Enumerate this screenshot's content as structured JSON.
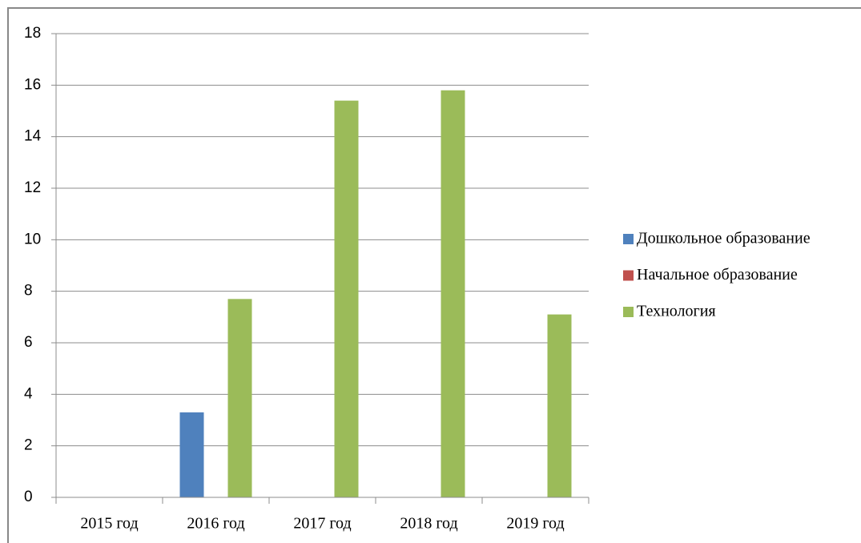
{
  "chart_data": {
    "type": "bar",
    "categories": [
      "2015 год",
      "2016 год",
      "2017 год",
      "2018 год",
      "2019 год"
    ],
    "series": [
      {
        "name": "Дошкольное образование",
        "color": "#4f81bd",
        "values": [
          0,
          3.3,
          0,
          0,
          0
        ]
      },
      {
        "name": "Начальное образование",
        "color": "#c0504d",
        "values": [
          0,
          0,
          0,
          0,
          0
        ]
      },
      {
        "name": "Технология",
        "color": "#9bbb59",
        "values": [
          0,
          7.7,
          15.4,
          15.8,
          7.1
        ]
      }
    ],
    "ylim": [
      0,
      18
    ],
    "yticks": [
      0,
      2,
      4,
      6,
      8,
      10,
      12,
      14,
      16,
      18
    ],
    "grid": true,
    "legend": "right"
  }
}
